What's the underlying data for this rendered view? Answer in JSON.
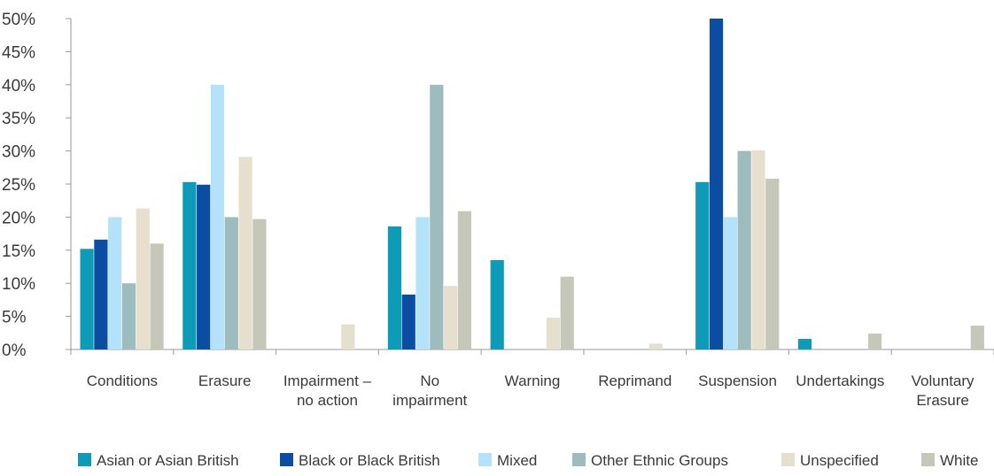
{
  "chart_data": {
    "type": "bar",
    "title": "",
    "xlabel": "",
    "ylabel": "",
    "ylim": [
      0,
      50
    ],
    "y_tick_step": 5,
    "y_tick_format": "percent",
    "grid": false,
    "legend_position": "bottom",
    "categories": [
      [
        "Conditions"
      ],
      [
        "Erasure"
      ],
      [
        "Impairment –",
        "no action"
      ],
      [
        "No",
        "impairment"
      ],
      [
        "Warning"
      ],
      [
        "Reprimand"
      ],
      [
        "Suspension"
      ],
      [
        "Undertakings"
      ],
      [
        "Voluntary",
        "Erasure"
      ]
    ],
    "series": [
      {
        "name": "Asian or Asian British",
        "color": "#0e9bb8",
        "values": [
          15.2,
          25.3,
          0,
          18.6,
          13.5,
          0,
          25.3,
          1.6,
          0
        ]
      },
      {
        "name": "Black or Black British",
        "color": "#0a4da2",
        "values": [
          16.6,
          24.9,
          0,
          8.3,
          0,
          0,
          50,
          0,
          0
        ]
      },
      {
        "name": "Mixed",
        "color": "#b3e2fa",
        "values": [
          20,
          40,
          0,
          20,
          0,
          0,
          20,
          0,
          0
        ]
      },
      {
        "name": "Other Ethnic Groups",
        "color": "#9ebcbd",
        "values": [
          10,
          20,
          0,
          40,
          0,
          0,
          30,
          0,
          0
        ]
      },
      {
        "name": "Unspecified",
        "color": "#e6dfce",
        "values": [
          21.3,
          29.1,
          3.8,
          9.6,
          4.8,
          0.9,
          30.1,
          0,
          0
        ]
      },
      {
        "name": "White",
        "color": "#c5c7b8",
        "values": [
          16,
          19.7,
          0,
          20.9,
          11,
          0,
          25.8,
          2.4,
          3.6
        ]
      }
    ]
  }
}
